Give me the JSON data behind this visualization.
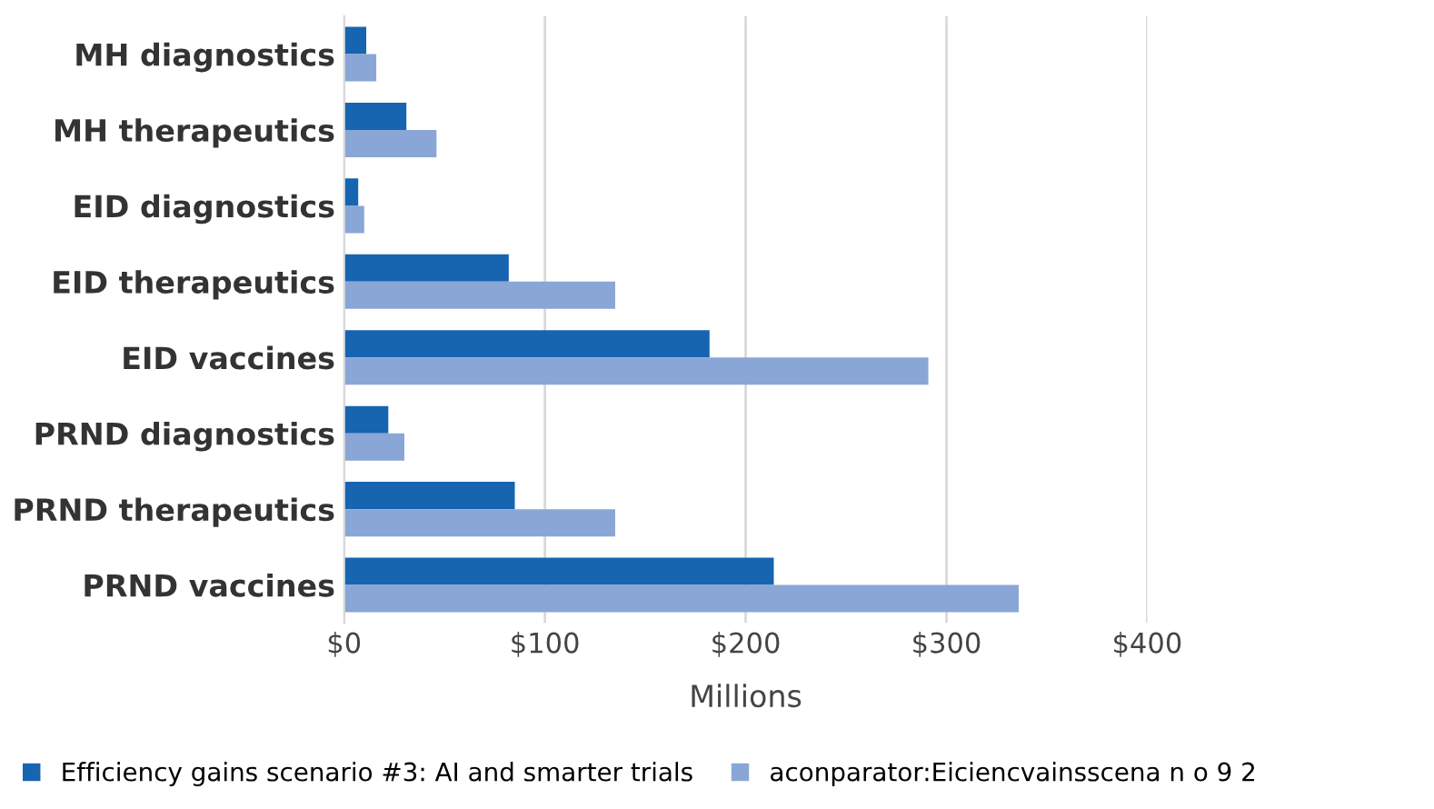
{
  "chart_data": {
    "type": "bar",
    "orientation": "horizontal",
    "xlabel": "Millions",
    "categories": [
      "MH diagnostics",
      "MH therapeutics",
      "EID diagnostics",
      "EID therapeutics",
      "EID vaccines",
      "PRND diagnostics",
      "PRND therapeutics",
      "PRND vaccines"
    ],
    "series": [
      {
        "name": "Efficiency gains scenario #3: AI and smarter trials",
        "color": "#1764b0",
        "values": [
          11,
          31,
          7,
          82,
          182,
          22,
          85,
          214
        ]
      },
      {
        "name": "aconparator:Eiciencvainsscena n o 9 2",
        "color": "#8aa6d6",
        "values": [
          16,
          46,
          10,
          135,
          291,
          30,
          135,
          336
        ]
      }
    ],
    "xlim": [
      0,
      400
    ],
    "xticks": [
      {
        "value": 0,
        "label": "$0"
      },
      {
        "value": 100,
        "label": "$100"
      },
      {
        "value": 200,
        "label": "$200"
      },
      {
        "value": 300,
        "label": "$300"
      },
      {
        "value": 400,
        "label": "$400"
      }
    ],
    "grid": "x",
    "legend": "bottom"
  }
}
